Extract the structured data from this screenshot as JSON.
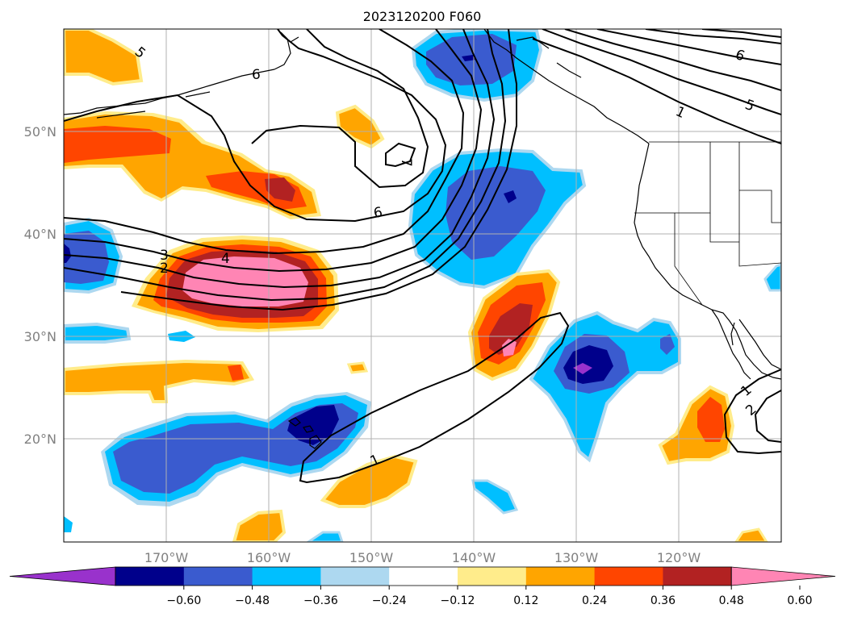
{
  "title": "2023120200 F060",
  "map": {
    "projection": "PlateCarree",
    "lon_range": [
      -180,
      -110
    ],
    "lat_range": [
      10,
      60
    ],
    "grid": true,
    "lat_labels": [
      "50°N",
      "40°N",
      "30°N",
      "20°N"
    ],
    "lon_labels": [
      "170°W",
      "160°W",
      "150°W",
      "140°W",
      "130°W",
      "120°W"
    ],
    "contour_labels": [
      "5",
      "6",
      "6",
      "5",
      "1",
      "7",
      "6",
      "3",
      "2",
      "4",
      "1",
      "1",
      "2"
    ]
  },
  "colorbar": {
    "ticks": [
      "−0.60",
      "−0.48",
      "−0.36",
      "−0.24",
      "−0.12",
      "0.12",
      "0.24",
      "0.36",
      "0.48",
      "0.60"
    ],
    "colors": [
      "#9932cc",
      "#00008b",
      "#3a5bcf",
      "#00bfff",
      "#add8f0",
      "#ffffff",
      "#ffec8b",
      "#ffa500",
      "#ff4500",
      "#b22222",
      "#ff85b4"
    ],
    "extend": "both"
  },
  "colors": {
    "coast": "#000000",
    "grid": "#b0b0b0",
    "label_gray": "#808080"
  }
}
